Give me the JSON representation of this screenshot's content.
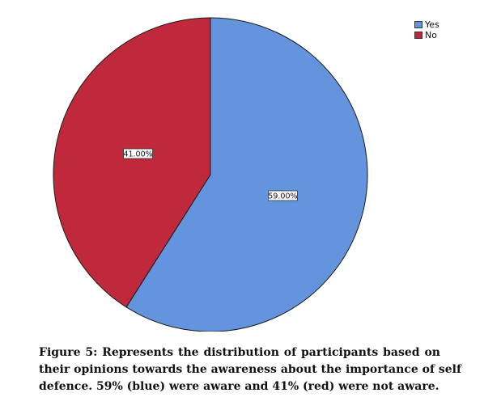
{
  "chart_data": {
    "type": "pie",
    "title": "",
    "categories": [
      "Yes",
      "No"
    ],
    "values": [
      59.0,
      41.0
    ],
    "data_labels": [
      "59.00%",
      "41.00%"
    ],
    "colors": [
      "#6494DE",
      "#C0283C"
    ],
    "legend": {
      "placement": "top-right",
      "entries": [
        "Yes",
        "No"
      ]
    }
  },
  "caption": {
    "lines": [
      "Figure 5: Represents the distribution of participants based on",
      "their opinions towards the awareness about the importance of self",
      "defence. 59% (blue) were aware and 41% (red) were not aware."
    ]
  }
}
